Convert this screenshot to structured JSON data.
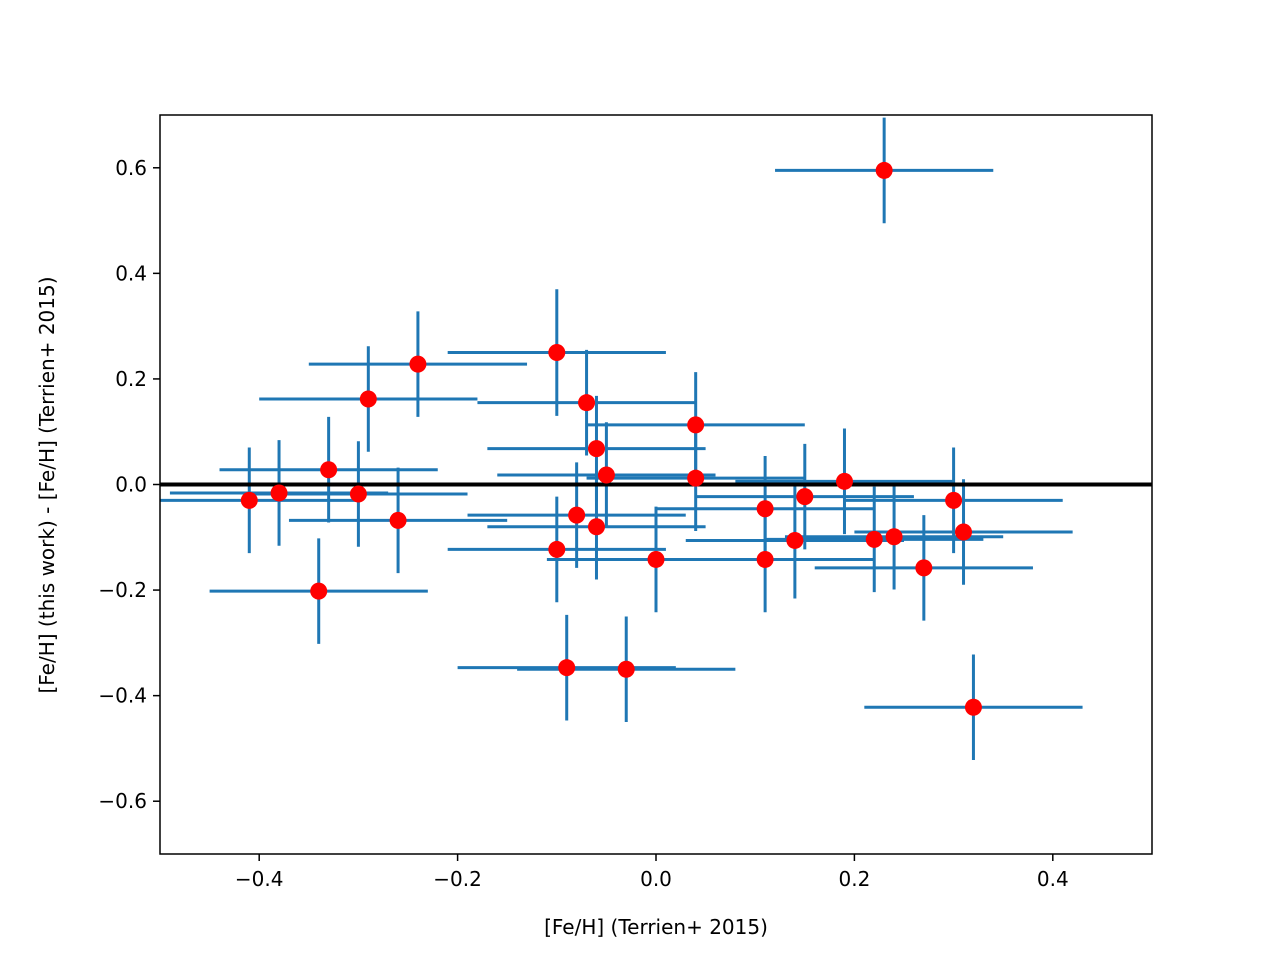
{
  "chart_data": {
    "type": "scatter",
    "title": "",
    "xlabel": "[Fe/H] (Terrien+ 2015)",
    "ylabel": "[Fe/H] (this work) - [Fe/H] (Terrien+ 2015)",
    "xlim": [
      -0.5,
      0.5
    ],
    "ylim": [
      -0.7,
      0.7
    ],
    "xticks": [
      -0.4,
      -0.2,
      0.0,
      0.2,
      0.4
    ],
    "xtick_labels": [
      "−0.4",
      "−0.2",
      "0.0",
      "0.2",
      "0.4"
    ],
    "yticks": [
      -0.6,
      -0.4,
      -0.2,
      0.0,
      0.2,
      0.4,
      0.6
    ],
    "ytick_labels": [
      "−0.6",
      "−0.4",
      "−0.2",
      "0.0",
      "0.2",
      "0.4",
      "0.6"
    ],
    "grid": false,
    "reference_line": {
      "y": 0.0,
      "color": "#000000"
    },
    "errorbar_color": "#1f77b4",
    "marker_color": "#ff0000",
    "points": [
      {
        "x": 0.23,
        "y": 0.595,
        "xerr": 0.11,
        "yerr": 0.1
      },
      {
        "x": -0.24,
        "y": 0.228,
        "xerr": 0.11,
        "yerr": 0.1
      },
      {
        "x": -0.29,
        "y": 0.162,
        "xerr": 0.11,
        "yerr": 0.1
      },
      {
        "x": -0.1,
        "y": 0.25,
        "xerr": 0.11,
        "yerr": 0.12
      },
      {
        "x": -0.07,
        "y": 0.155,
        "xerr": 0.11,
        "yerr": 0.1
      },
      {
        "x": 0.04,
        "y": 0.113,
        "xerr": 0.11,
        "yerr": 0.1
      },
      {
        "x": -0.06,
        "y": 0.068,
        "xerr": 0.11,
        "yerr": 0.1
      },
      {
        "x": -0.05,
        "y": 0.018,
        "xerr": 0.11,
        "yerr": 0.1
      },
      {
        "x": 0.04,
        "y": 0.012,
        "xerr": 0.11,
        "yerr": 0.1
      },
      {
        "x": -0.33,
        "y": 0.028,
        "xerr": 0.11,
        "yerr": 0.1
      },
      {
        "x": -0.41,
        "y": -0.03,
        "xerr": 0.11,
        "yerr": 0.1
      },
      {
        "x": -0.38,
        "y": -0.016,
        "xerr": 0.11,
        "yerr": 0.1
      },
      {
        "x": -0.3,
        "y": -0.018,
        "xerr": 0.11,
        "yerr": 0.1
      },
      {
        "x": -0.26,
        "y": -0.068,
        "xerr": 0.11,
        "yerr": 0.1
      },
      {
        "x": -0.34,
        "y": -0.202,
        "xerr": 0.11,
        "yerr": 0.1
      },
      {
        "x": -0.08,
        "y": -0.058,
        "xerr": 0.11,
        "yerr": 0.1
      },
      {
        "x": -0.06,
        "y": -0.08,
        "xerr": 0.11,
        "yerr": 0.1
      },
      {
        "x": -0.1,
        "y": -0.123,
        "xerr": 0.11,
        "yerr": 0.1
      },
      {
        "x": 0.0,
        "y": -0.142,
        "xerr": 0.11,
        "yerr": 0.1
      },
      {
        "x": -0.09,
        "y": -0.347,
        "xerr": 0.11,
        "yerr": 0.1
      },
      {
        "x": -0.03,
        "y": -0.35,
        "xerr": 0.11,
        "yerr": 0.1
      },
      {
        "x": 0.11,
        "y": -0.046,
        "xerr": 0.11,
        "yerr": 0.1
      },
      {
        "x": 0.11,
        "y": -0.142,
        "xerr": 0.11,
        "yerr": 0.1
      },
      {
        "x": 0.14,
        "y": -0.106,
        "xerr": 0.11,
        "yerr": 0.11
      },
      {
        "x": 0.15,
        "y": -0.023,
        "xerr": 0.11,
        "yerr": 0.1
      },
      {
        "x": 0.19,
        "y": 0.006,
        "xerr": 0.11,
        "yerr": 0.1
      },
      {
        "x": 0.22,
        "y": -0.104,
        "xerr": 0.11,
        "yerr": 0.1
      },
      {
        "x": 0.24,
        "y": -0.099,
        "xerr": 0.11,
        "yerr": 0.1
      },
      {
        "x": 0.27,
        "y": -0.158,
        "xerr": 0.11,
        "yerr": 0.1
      },
      {
        "x": 0.3,
        "y": -0.03,
        "xerr": 0.11,
        "yerr": 0.1
      },
      {
        "x": 0.31,
        "y": -0.09,
        "xerr": 0.11,
        "yerr": 0.1
      },
      {
        "x": 0.32,
        "y": -0.422,
        "xerr": 0.11,
        "yerr": 0.1
      }
    ]
  }
}
